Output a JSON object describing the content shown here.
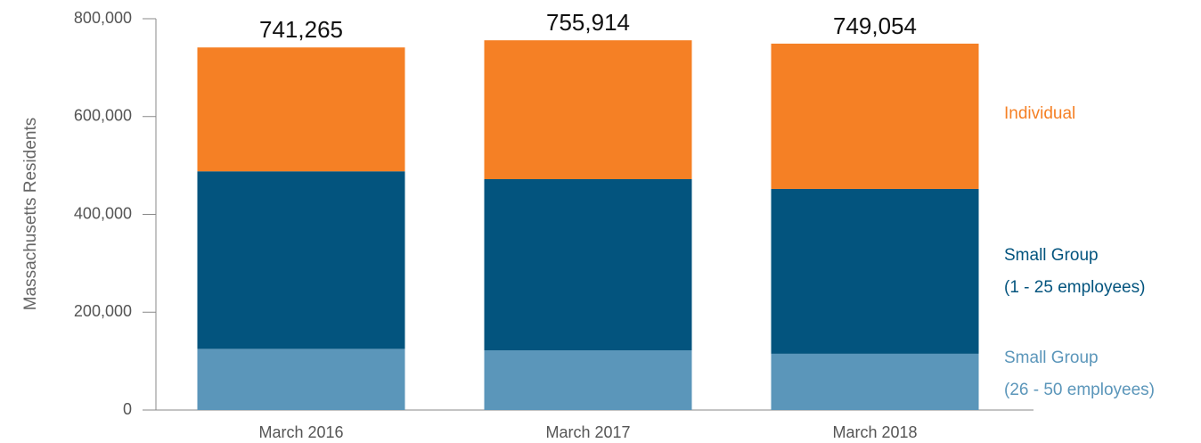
{
  "chart_data": {
    "type": "stacked_bar",
    "y_axis_label": "Massachusetts Residents",
    "categories": [
      "March 2016",
      "March 2017",
      "March 2018"
    ],
    "series": [
      {
        "name": "Small Group\n(26 - 50 employees)",
        "color": "#5b96ba",
        "values": [
          125000,
          122000,
          115000
        ]
      },
      {
        "name": "Small Group\n(1 - 25 employees)",
        "color": "#03547e",
        "values": [
          363000,
          350000,
          337000
        ]
      },
      {
        "name": "Individual",
        "color": "#f58025",
        "values": [
          253265,
          283914,
          297054
        ]
      }
    ],
    "totals": {
      "values": [
        741265,
        755914,
        749054
      ],
      "value_labels": [
        "741,265",
        "755,914",
        "749,054"
      ]
    },
    "ylim": [
      0,
      800000
    ],
    "yticks": [
      0,
      {
        "value": 200000,
        "label": "200,000"
      },
      {
        "value": 400000,
        "label": "400,000"
      },
      {
        "value": 600000,
        "label": "600,000"
      },
      {
        "value": 800000,
        "label": "800,000"
      }
    ],
    "legend": "right"
  }
}
